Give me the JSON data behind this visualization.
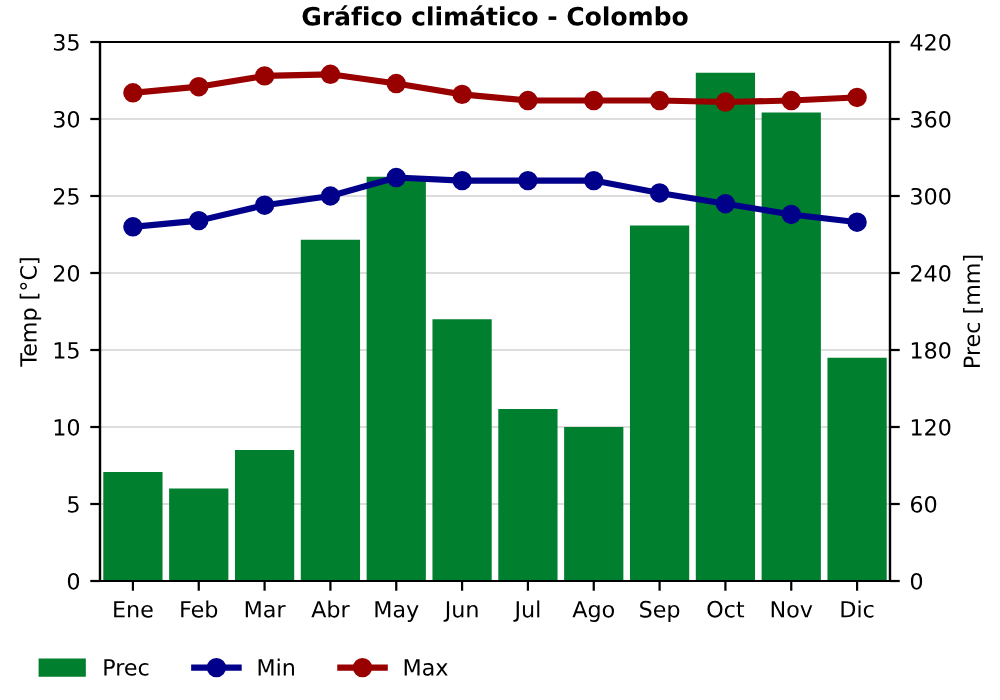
{
  "chart_data": {
    "type": "line",
    "title": "Gráfico climático - Colombo",
    "ylabel": "Temp [°C]",
    "y2label": "Prec [mm]",
    "categories": [
      "Ene",
      "Feb",
      "Mar",
      "Abr",
      "May",
      "Jun",
      "Jul",
      "Ago",
      "Sep",
      "Oct",
      "Nov",
      "Dic"
    ],
    "series": [
      {
        "name": "Prec",
        "type": "bar",
        "axis": "y2",
        "color": "#007f2e",
        "values": [
          85,
          72,
          102,
          266,
          315,
          204,
          134,
          120,
          277,
          396,
          365,
          174
        ]
      },
      {
        "name": "Min",
        "color": "#00008b",
        "values": [
          23,
          23.4,
          24.4,
          25,
          26.2,
          26,
          26,
          26,
          25.2,
          24.5,
          23.8,
          23.3
        ]
      },
      {
        "name": "Max",
        "color": "#990000",
        "values": [
          31.7,
          32.1,
          32.8,
          32.9,
          32.3,
          31.6,
          31.2,
          31.2,
          31.2,
          31.1,
          31.2,
          31.4
        ]
      }
    ],
    "ylim": [
      0,
      35
    ],
    "yticks": [
      0,
      5,
      10,
      15,
      20,
      25,
      30,
      35
    ],
    "y2lim": [
      0,
      420
    ],
    "y2ticks": [
      0,
      60,
      120,
      180,
      240,
      300,
      360,
      420
    ],
    "grid": true,
    "legend": "bottom left",
    "marker": "circle",
    "line_style": "solid"
  }
}
